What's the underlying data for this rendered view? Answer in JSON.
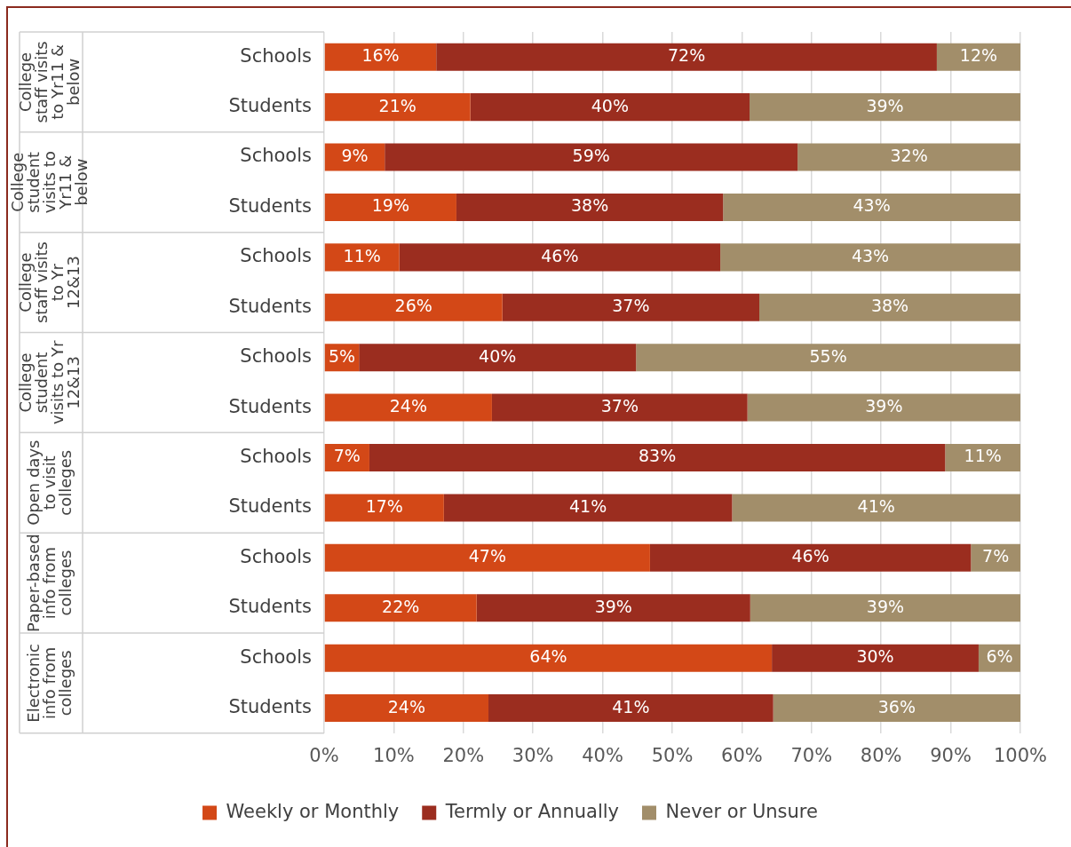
{
  "chart_data": {
    "type": "bar",
    "orientation": "horizontal",
    "stacked": true,
    "categories": [
      "Schools",
      "Students",
      "Schools",
      "Students",
      "Schools",
      "Students",
      "Schools",
      "Students",
      "Schools",
      "Students",
      "Schools",
      "Students",
      "Schools",
      "Students"
    ],
    "annotations": [
      "College staff visits to Yr11 & below",
      "College student visits to Yr11 & below",
      "College staff visits to Yr 12&13",
      "College student visits to Yr 12&13",
      "Open days to visit colleges",
      "Paper-based info from colleges",
      "Electronic info from colleges"
    ],
    "series": [
      {
        "name": "Weekly or Monthly",
        "color": "#d34817",
        "values": [
          16.1,
          21.0,
          8.7,
          19.0,
          10.8,
          25.6,
          5.0,
          24.1,
          6.5,
          17.2,
          46.8,
          21.9,
          64.3,
          23.6
        ],
        "value_labels": [
          "16%",
          "21%",
          "9%",
          "19%",
          "11%",
          "26%",
          "5%",
          "24%",
          "7%",
          "17%",
          "47%",
          "22%",
          "64%",
          "24%"
        ]
      },
      {
        "name": "Termly or Annually",
        "color": "#9b2d1f",
        "values": [
          71.9,
          40.1,
          59.3,
          38.3,
          46.1,
          36.9,
          39.8,
          36.7,
          82.7,
          41.4,
          46.1,
          39.3,
          29.7,
          40.9
        ],
        "value_labels": [
          "72%",
          "40%",
          "59%",
          "38%",
          "46%",
          "37%",
          "40%",
          "37%",
          "83%",
          "41%",
          "46%",
          "39%",
          "30%",
          "41%"
        ]
      },
      {
        "name": "Never or Unsure",
        "color": "#a28e6a",
        "values": [
          12.0,
          38.9,
          32.0,
          42.7,
          43.1,
          37.5,
          55.2,
          39.2,
          10.8,
          41.4,
          7.1,
          38.8,
          6.0,
          35.5
        ],
        "value_labels": [
          "12%",
          "39%",
          "32%",
          "43%",
          "43%",
          "38%",
          "55%",
          "39%",
          "11%",
          "41%",
          "7%",
          "39%",
          "6%",
          "36%"
        ]
      }
    ],
    "xlim": [
      0,
      100
    ],
    "xticks": [
      {
        "value": 0,
        "label": "0%"
      },
      {
        "value": 10,
        "label": "10%"
      },
      {
        "value": 20,
        "label": "20%"
      },
      {
        "value": 30,
        "label": "30%"
      },
      {
        "value": 40,
        "label": "40%"
      },
      {
        "value": 50,
        "label": "50%"
      },
      {
        "value": 60,
        "label": "60%"
      },
      {
        "value": 70,
        "label": "70%"
      },
      {
        "value": 80,
        "label": "80%"
      },
      {
        "value": 90,
        "label": "90%"
      },
      {
        "value": 100,
        "label": "100%"
      }
    ],
    "grid": "x",
    "legend": "bottom"
  }
}
